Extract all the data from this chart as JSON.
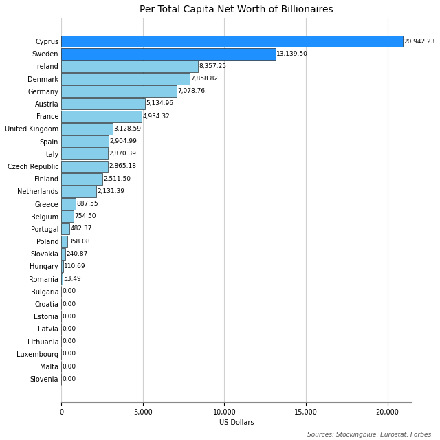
{
  "title": "Per Total Capita Net Worth of Billionaires",
  "xlabel": "US Dollars",
  "source_text": "Sources: Stockingblue, Eurostat, Forbes",
  "categories": [
    "Cyprus",
    "Sweden",
    "Ireland",
    "Denmark",
    "Germany",
    "Austria",
    "France",
    "United Kingdom",
    "Spain",
    "Italy",
    "Czech Republic",
    "Finland",
    "Netherlands",
    "Greece",
    "Belgium",
    "Portugal",
    "Poland",
    "Slovakia",
    "Hungary",
    "Romania",
    "Bulgaria",
    "Croatia",
    "Estonia",
    "Latvia",
    "Lithuania",
    "Luxembourg",
    "Malta",
    "Slovenia"
  ],
  "values": [
    20942.23,
    13139.5,
    8357.25,
    7858.82,
    7078.76,
    5134.96,
    4934.32,
    3128.59,
    2904.99,
    2870.39,
    2865.18,
    2511.5,
    2131.39,
    887.55,
    754.5,
    482.37,
    358.08,
    240.87,
    110.69,
    53.49,
    0.0,
    0.0,
    0.0,
    0.0,
    0.0,
    0.0,
    0.0,
    0.0
  ],
  "bar_color_top2": "#1E90FF",
  "bar_color_rest": "#87CEEB",
  "label_fontsize": 6.5,
  "title_fontsize": 10,
  "tick_fontsize": 7,
  "source_fontsize": 6.5,
  "xlim": [
    0,
    21500
  ],
  "background_color": "#ffffff",
  "grid_color": "#d0d0d0"
}
